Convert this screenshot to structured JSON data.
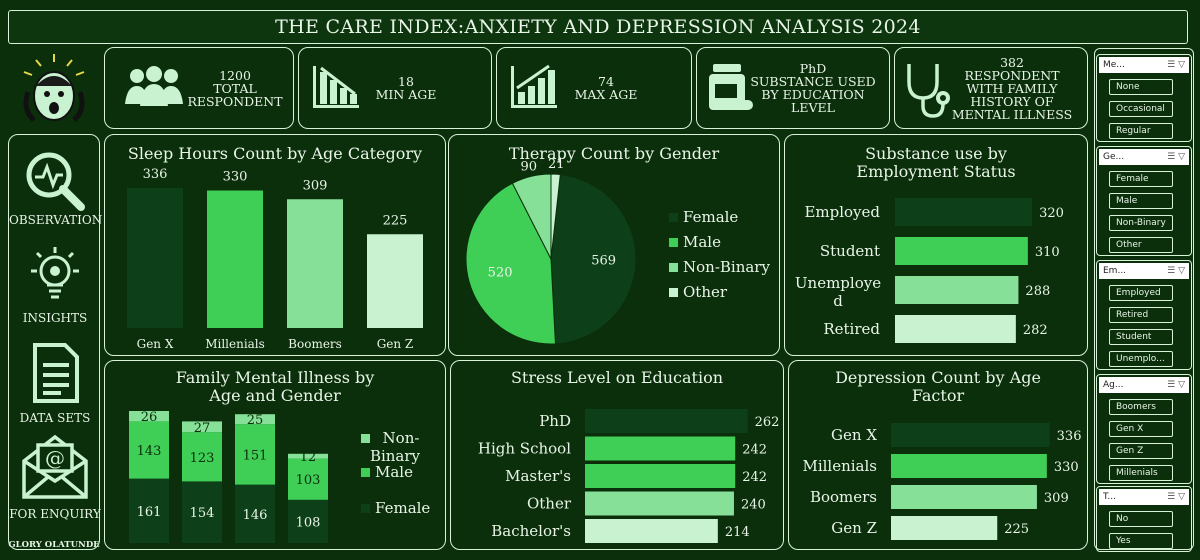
{
  "title": "THE CARE INDEX:ANXIETY AND DEPRESSION ANALYSIS 2024",
  "kpis": [
    {
      "value": "1200",
      "label": "TOTAL RESPONDENT",
      "icon": "people-icon"
    },
    {
      "value": "18",
      "label": "MIN AGE",
      "icon": "bar-chart-down-icon"
    },
    {
      "value": "74",
      "label": "MAX AGE",
      "icon": "bar-chart-up-icon"
    },
    {
      "value": "PhD",
      "label": "SUBSTANCE USED BY EDUCATION LEVEL",
      "icon": "pill-bottle-icon"
    },
    {
      "value": "382",
      "label": "RESPONDENT WITH FAMILY HISTORY OF MENTAL ILLNESS",
      "icon": "stethoscope-icon"
    }
  ],
  "nav": [
    {
      "label": "OBSERVATION",
      "icon": "magnifier-pulse-icon"
    },
    {
      "label": "INSIGHTS",
      "icon": "lightbulb-gear-icon"
    },
    {
      "label": "DATA SETS",
      "icon": "document-icon"
    },
    {
      "label": "FOR ENQUIRY",
      "icon": "email-icon"
    }
  ],
  "author": "GLORY OLATUNDE",
  "colors": {
    "c1": "#0d3f19",
    "c2": "#3fcf56",
    "c3": "#86e098",
    "c4": "#c8f2d0",
    "bg": "#0b2e0b"
  },
  "slicers": [
    {
      "title": "Me...",
      "options": [
        "None",
        "Occasional",
        "Regular"
      ]
    },
    {
      "title": "Ge...",
      "options": [
        "Female",
        "Male",
        "Non-Binary",
        "Other"
      ]
    },
    {
      "title": "Em...",
      "options": [
        "Employed",
        "Retired",
        "Student",
        "Unemplo..."
      ]
    },
    {
      "title": "Ag...",
      "options": [
        "Boomers",
        "Gen X",
        "Gen Z",
        "Millenials"
      ]
    },
    {
      "title": "T...",
      "options": [
        "No",
        "Yes"
      ]
    }
  ],
  "chart_data": [
    {
      "id": "sleep",
      "type": "bar",
      "title": "Sleep Hours Count by Age Category",
      "categories": [
        "Gen X",
        "Millenials",
        "Boomers",
        "Gen Z"
      ],
      "values": [
        336,
        330,
        309,
        225
      ]
    },
    {
      "id": "therapy",
      "type": "pie",
      "title": "Therapy Count by Gender",
      "categories": [
        "Female",
        "Male",
        "Non-Binary",
        "Other"
      ],
      "values": [
        569,
        520,
        90,
        21
      ],
      "legend": "right"
    },
    {
      "id": "substance",
      "type": "bar",
      "title": "Substance use by Employment Status",
      "orientation": "horizontal",
      "categories": [
        "Employed",
        "Student",
        "Unemployed",
        "Retired"
      ],
      "values": [
        320,
        310,
        288,
        282
      ]
    },
    {
      "id": "family",
      "type": "bar",
      "title": "Family Mental Illness by Age and Gender",
      "stacked": true,
      "series": [
        {
          "name": "Female",
          "values": [
            161,
            154,
            146,
            108
          ]
        },
        {
          "name": "Male",
          "values": [
            143,
            123,
            151,
            103
          ]
        },
        {
          "name": "Non-Binary",
          "values": [
            26,
            27,
            25,
            12
          ]
        }
      ],
      "legend": "right"
    },
    {
      "id": "stress",
      "type": "bar",
      "title": "Stress Level on Education",
      "orientation": "horizontal",
      "categories": [
        "PhD",
        "High School",
        "Master's",
        "Other",
        "Bachelor's"
      ],
      "values": [
        262,
        242,
        242,
        240,
        214
      ]
    },
    {
      "id": "depression",
      "type": "bar",
      "title": "Depression Count by Age Factor",
      "orientation": "horizontal",
      "categories": [
        "Gen X",
        "Millenials",
        "Boomers",
        "Gen Z"
      ],
      "values": [
        336,
        330,
        309,
        225
      ]
    }
  ]
}
